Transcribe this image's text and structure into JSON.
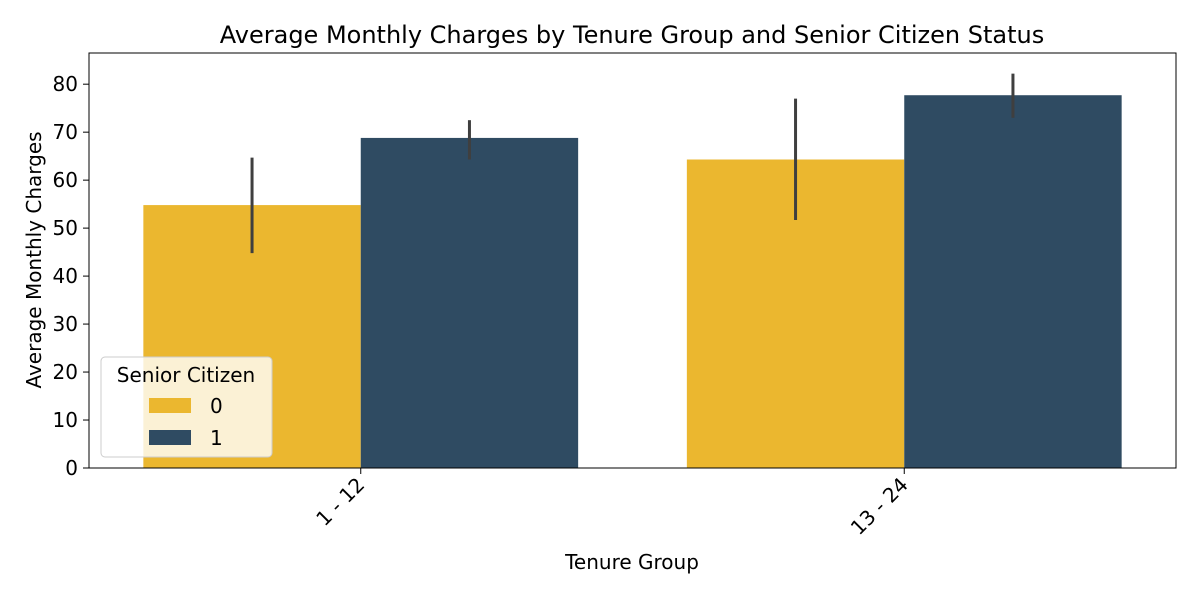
{
  "chart_data": {
    "type": "bar",
    "title": "Average Monthly Charges by Tenure Group and Senior Citizen Status",
    "xlabel": "Tenure Group",
    "ylabel": "Average Monthly Charges",
    "categories": [
      "1 - 12",
      "13 - 24"
    ],
    "series": [
      {
        "name": "0",
        "color": "#ebb72f",
        "values": [
          54.8,
          64.3
        ],
        "ci": [
          [
            44.8,
            64.7
          ],
          [
            51.7,
            77.0
          ]
        ]
      },
      {
        "name": "1",
        "color": "#2f4b62",
        "values": [
          68.8,
          77.7
        ],
        "ci": [
          [
            64.3,
            72.5
          ],
          [
            73.0,
            82.2
          ]
        ]
      }
    ],
    "ylim": [
      0,
      86.5
    ],
    "yticks": [
      0,
      10,
      20,
      30,
      40,
      50,
      60,
      70,
      80
    ],
    "grid": false,
    "legend": {
      "title": "Senior Citizen",
      "position": "lower-left"
    }
  }
}
